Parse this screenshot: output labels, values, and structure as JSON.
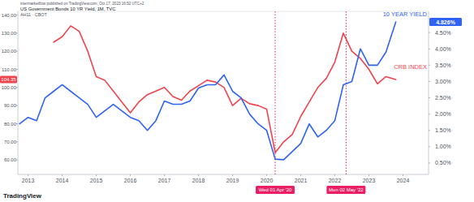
{
  "chart_data": {
    "type": "line",
    "title": "US Government Bonds 10 YR Yield, 1M, TVC",
    "subtitle": "AH11 · CBOT",
    "credit": "intermarketflow published on TradingView.com, Oct 17, 2023 16:52 UTC+2",
    "logo": "TradingView",
    "x": [
      2012.75,
      2013.0,
      2013.25,
      2013.5,
      2013.75,
      2014.0,
      2014.25,
      2014.5,
      2014.75,
      2015.0,
      2015.25,
      2015.5,
      2015.75,
      2016.0,
      2016.25,
      2016.5,
      2016.75,
      2017.0,
      2017.25,
      2017.5,
      2017.75,
      2018.0,
      2018.25,
      2018.5,
      2018.75,
      2019.0,
      2019.25,
      2019.5,
      2019.75,
      2020.0,
      2020.25,
      2020.5,
      2020.75,
      2021.0,
      2021.25,
      2021.5,
      2021.75,
      2022.0,
      2022.25,
      2022.5,
      2022.75,
      2023.0,
      2023.25,
      2023.5,
      2023.79
    ],
    "series": [
      {
        "name": "CRB INDEX",
        "color": "#f0434e",
        "values": [
          null,
          null,
          null,
          null,
          125,
          128,
          134,
          131,
          120,
          106,
          104,
          98,
          92,
          86,
          92,
          96,
          98,
          100,
          95,
          93,
          98,
          101,
          104,
          103,
          100,
          90,
          94,
          91,
          90,
          88,
          64,
          70,
          74,
          84,
          92,
          100,
          105,
          114,
          130,
          120,
          116,
          110,
          102,
          106,
          104.35
        ]
      },
      {
        "name": "10 YEAR YIELD",
        "color": "#2f62f5",
        "axis": "y2",
        "values": [
          1.7,
          1.9,
          1.8,
          2.5,
          2.7,
          2.9,
          2.7,
          2.5,
          2.3,
          1.9,
          2.1,
          2.3,
          2.1,
          1.9,
          1.8,
          1.5,
          1.8,
          2.4,
          2.3,
          2.3,
          2.4,
          2.8,
          2.9,
          2.9,
          3.2,
          2.7,
          2.5,
          2.0,
          1.7,
          1.5,
          0.62,
          0.6,
          0.85,
          1.1,
          1.7,
          1.3,
          1.5,
          1.8,
          2.9,
          3.0,
          4.0,
          3.5,
          3.5,
          3.9,
          4.826
        ]
      }
    ],
    "xlim": [
      2012.7,
      2024.75
    ],
    "xticks": [
      2013,
      2014,
      2015,
      2016,
      2017,
      2018,
      2019,
      2020,
      2021,
      2022,
      2023,
      2024
    ],
    "ylim": [
      52,
      142
    ],
    "yticks": [
      {
        "value": 60,
        "label": "60.00"
      },
      {
        "value": 70,
        "label": "70.00"
      },
      {
        "value": 80,
        "label": "80.00"
      },
      {
        "value": 90,
        "label": "90.00"
      },
      {
        "value": 100,
        "label": "100.00"
      },
      {
        "value": 110,
        "label": "110.00"
      },
      {
        "value": 120,
        "label": "120.00"
      },
      {
        "value": 130,
        "label": "130.00"
      },
      {
        "value": 140,
        "label": "140.00"
      }
    ],
    "y2lim": [
      0.15,
      5.15
    ],
    "y2ticks": [
      {
        "value": 0.5,
        "label": "0.50%"
      },
      {
        "value": 1.0,
        "label": "1.00%"
      },
      {
        "value": 1.5,
        "label": "1.50%"
      },
      {
        "value": 2.0,
        "label": "2.00%"
      },
      {
        "value": 2.5,
        "label": "2.50%"
      },
      {
        "value": 3.0,
        "label": "3.00%"
      },
      {
        "value": 3.5,
        "label": "3.50%"
      },
      {
        "value": 4.0,
        "label": "4.00%"
      },
      {
        "value": 4.5,
        "label": "4.50%"
      }
    ],
    "grid": false,
    "markers": [
      {
        "x": 2020.25,
        "label": "Wed 01 Apr '20"
      },
      {
        "x": 2022.33,
        "label": "Mon 02 May '22"
      }
    ],
    "last_value_labels": [
      {
        "value": 104.35,
        "label": "104.35",
        "axis": "y"
      },
      {
        "value": 4.826,
        "label": "4.826%",
        "axis": "y2"
      }
    ]
  }
}
